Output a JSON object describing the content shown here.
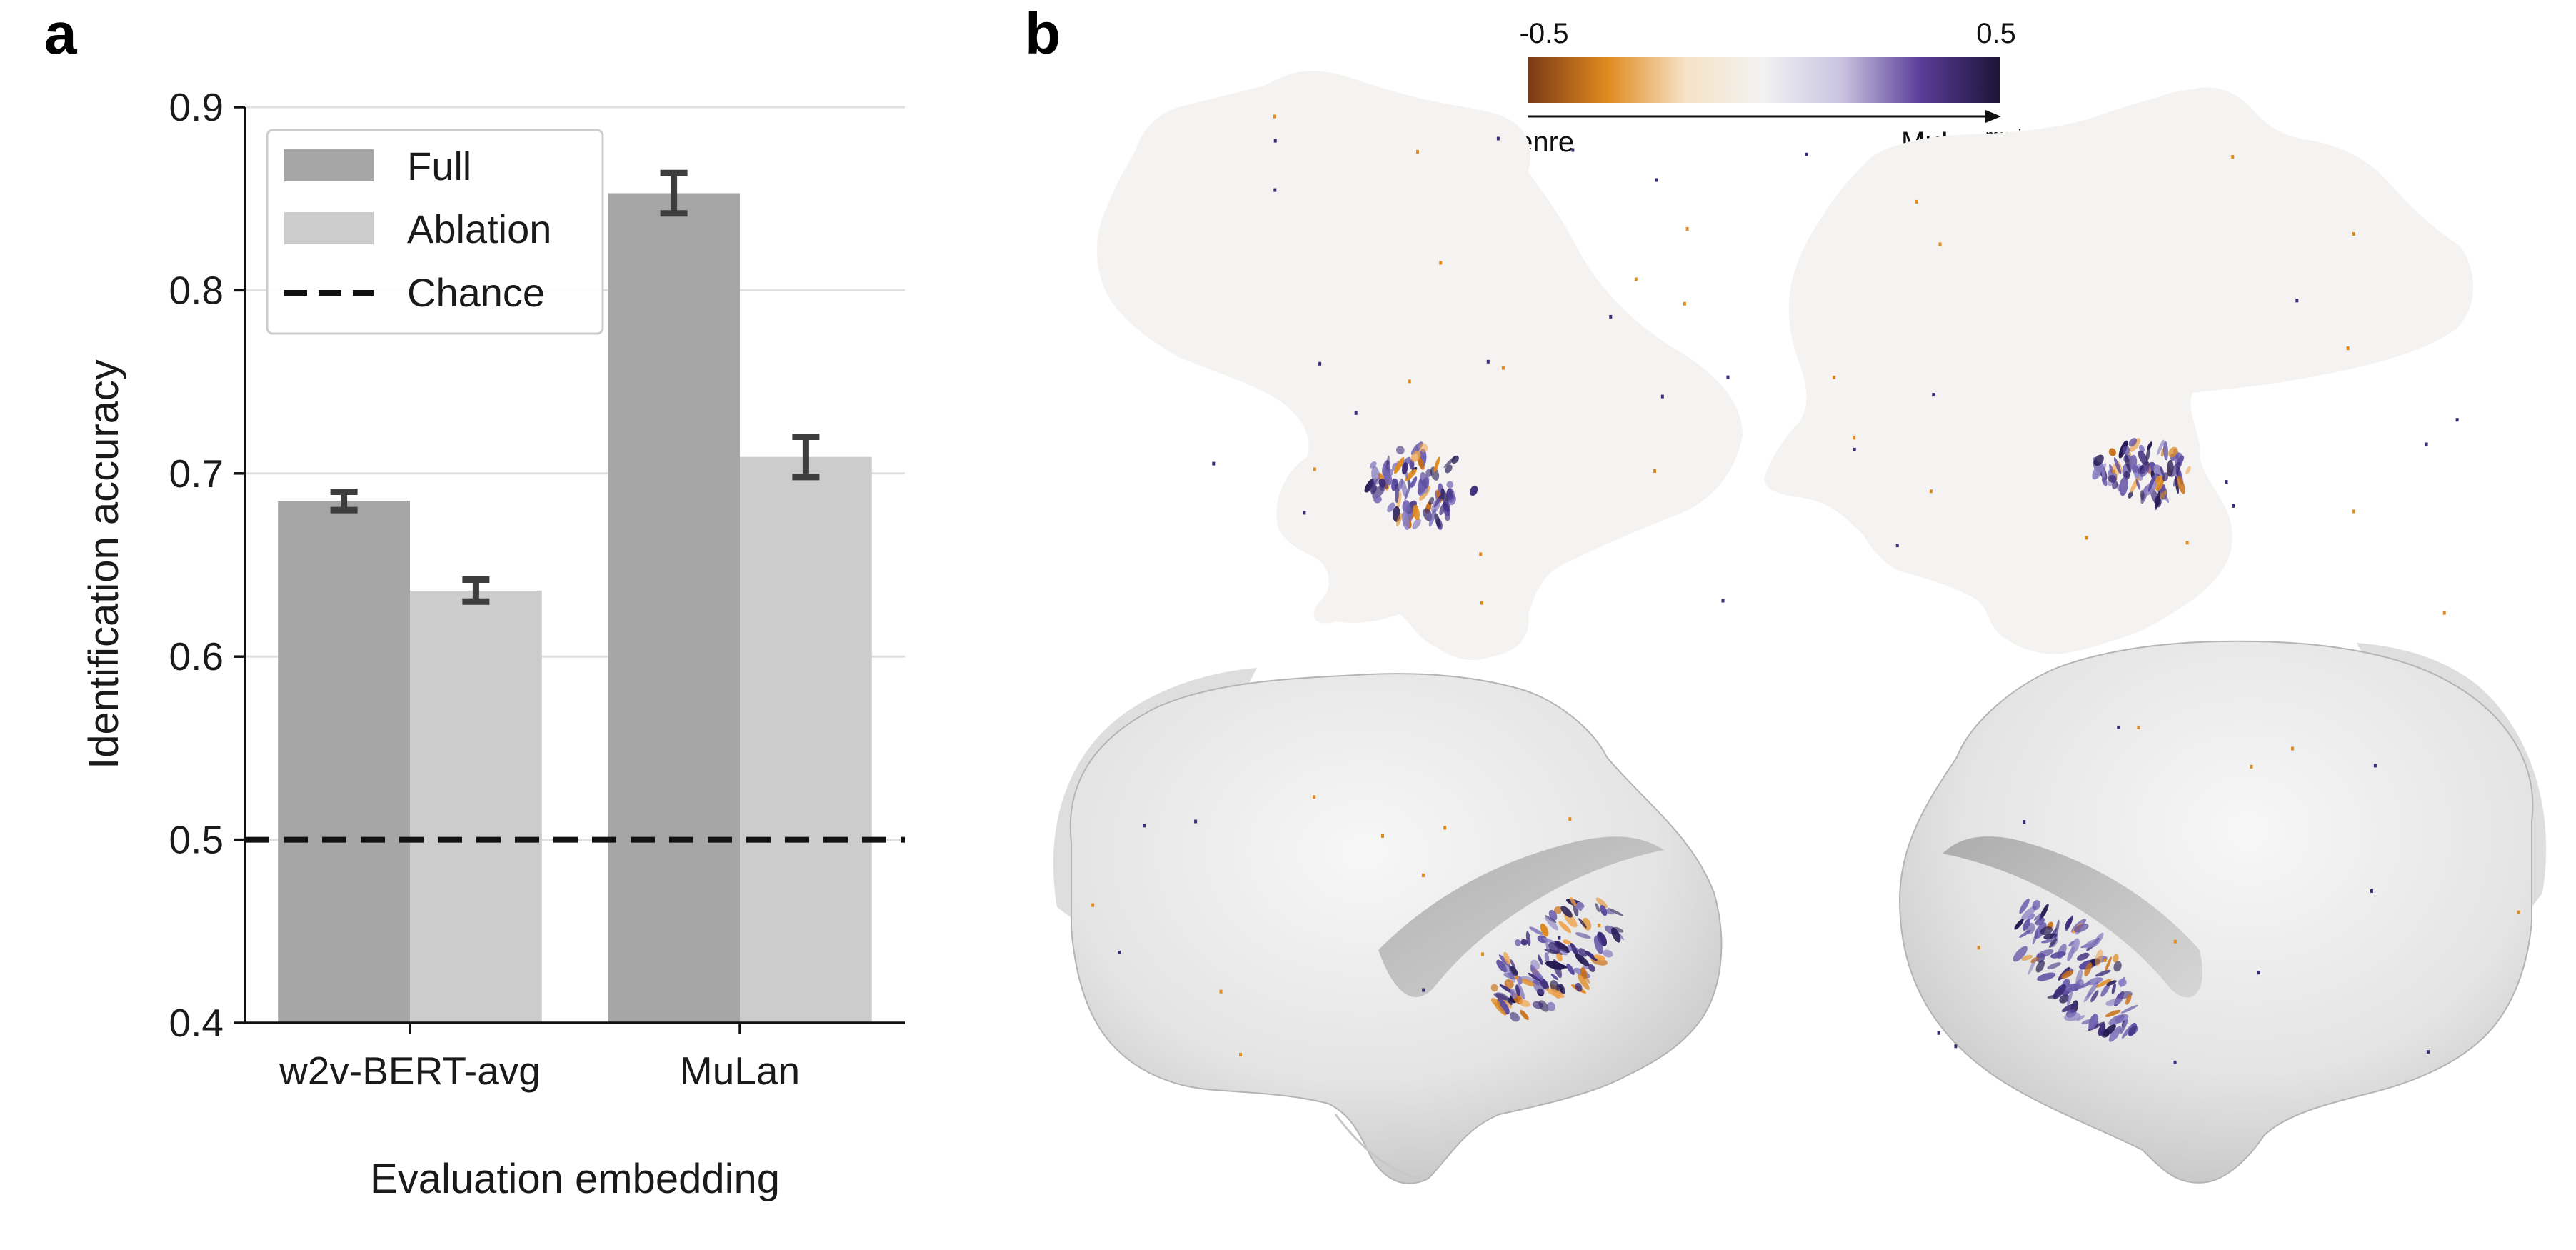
{
  "panels": {
    "a": "a",
    "b": "b"
  },
  "chart_data": {
    "type": "bar",
    "categories": [
      "w2v-BERT-avg",
      "MuLan"
    ],
    "series": [
      {
        "name": "Full",
        "values": [
          0.685,
          0.853
        ],
        "errors": [
          0.005,
          0.011
        ],
        "color": "#a6a6a6"
      },
      {
        "name": "Ablation",
        "values": [
          0.636,
          0.709
        ],
        "errors": [
          0.006,
          0.011
        ],
        "color": "#cccccc"
      }
    ],
    "chance": {
      "name": "Chance",
      "value": 0.5
    },
    "xlabel": "Evaluation embedding",
    "ylabel": "Identification accuracy",
    "ylim": [
      0.4,
      0.9
    ],
    "yticks": [
      "0.4",
      "0.5",
      "0.6",
      "0.7",
      "0.8",
      "0.9"
    ],
    "grid": "horizontal",
    "legend": "top-left"
  },
  "brain_panel": {
    "colorbar": {
      "min_label": "-0.5",
      "max_label": "0.5",
      "left_label": "Genre",
      "right_label": "MuLan",
      "right_label_sup": "music",
      "colors": [
        "#7a3a16",
        "#e08a1e",
        "#f6e2c6",
        "#f2f2f2",
        "#c8c2e0",
        "#5a3d98",
        "#1d1438"
      ]
    },
    "views": [
      "left-flatmap",
      "right-flatmap",
      "left-inflated-hemisphere",
      "right-inflated-hemisphere"
    ]
  }
}
